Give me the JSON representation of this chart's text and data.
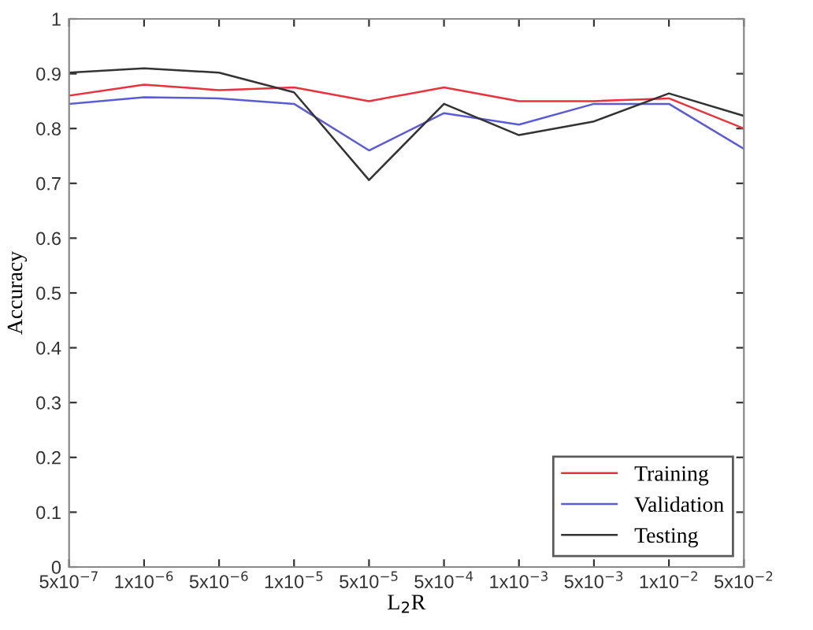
{
  "chart_data": {
    "type": "line",
    "xlabel": "L$_{2}$R",
    "ylabel": "Accuracy",
    "categories": [
      "5x10$^{−7}$",
      "1x10$^{−6}$",
      "5x10$^{−6}$",
      "1x10$^{−5}$",
      "5x10$^{−5}$",
      "5x10$^{−4}$",
      "1x10$^{−3}$",
      "5x10$^{−3}$",
      "1x10$^{−2}$",
      "5x10$^{−2}$"
    ],
    "series": [
      {
        "name": "Training",
        "color": "#e8323c",
        "values": [
          0.86,
          0.88,
          0.87,
          0.875,
          0.85,
          0.875,
          0.85,
          0.85,
          0.855,
          0.8
        ]
      },
      {
        "name": "Validation",
        "color": "#5b5bd6",
        "values": [
          0.845,
          0.857,
          0.855,
          0.845,
          0.76,
          0.828,
          0.807,
          0.845,
          0.845,
          0.763
        ]
      },
      {
        "name": "Testing",
        "color": "#333333",
        "values": [
          0.902,
          0.91,
          0.902,
          0.866,
          0.706,
          0.845,
          0.788,
          0.813,
          0.864,
          0.823
        ]
      }
    ],
    "ylim": [
      0,
      1
    ],
    "yticks": [
      0,
      0.1,
      0.2,
      0.3,
      0.4,
      0.5,
      0.6,
      0.7,
      0.8,
      0.9,
      1
    ],
    "grid": false,
    "legend": "bottom right",
    "marker": "none",
    "line_style": "solid"
  }
}
